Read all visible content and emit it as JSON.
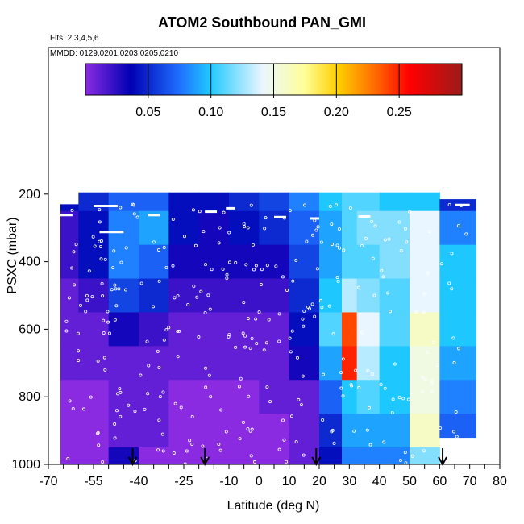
{
  "chart_data": {
    "type": "heatmap",
    "title": "ATOM2 Southbound PAN_GMI",
    "subtitle1": "Flts: 2,3,4,5,6",
    "subtitle2": "MMDD: 0129,0201,0203,0205,0210",
    "xlabel": "Latitude (deg N)",
    "ylabel": "PSXC (mbar)",
    "xlim": [
      -70,
      80
    ],
    "ylim": [
      1000,
      0
    ],
    "xticks": [
      -70,
      -55,
      -40,
      -25,
      -10,
      0,
      10,
      20,
      30,
      40,
      50,
      60,
      70,
      80
    ],
    "yticks": [
      200,
      400,
      600,
      800,
      1000
    ],
    "colorbar": {
      "range": [
        0,
        0.3
      ],
      "ticks": [
        0.05,
        0.1,
        0.15,
        0.2,
        0.25
      ],
      "tick_labels": [
        "0.05",
        "0.10",
        "0.15",
        "0.20",
        "0.25"
      ]
    },
    "latitude_bins": [
      -65,
      -55,
      -45,
      -35,
      -25,
      -15,
      -5,
      5,
      15,
      25,
      30,
      35,
      45,
      55,
      65
    ],
    "pressure_levels": [
      200,
      300,
      400,
      500,
      600,
      700,
      800,
      900,
      1000
    ],
    "values": [
      [
        0.04,
        0.05,
        0.07,
        0.07,
        0.04,
        0.04,
        0.05,
        0.06,
        0.08,
        0.1,
        0.11,
        0.11,
        0.1,
        0.1,
        0.05
      ],
      [
        0.02,
        0.04,
        0.08,
        0.09,
        0.04,
        0.03,
        0.04,
        0.05,
        0.07,
        0.09,
        0.11,
        0.12,
        0.12,
        0.14,
        0.08
      ],
      [
        0.02,
        0.04,
        0.08,
        0.07,
        0.03,
        0.03,
        0.03,
        0.03,
        0.06,
        0.09,
        0.11,
        0.11,
        0.12,
        0.14,
        0.1
      ],
      [
        0.01,
        0.02,
        0.06,
        0.05,
        0.02,
        0.02,
        0.02,
        0.02,
        0.05,
        0.1,
        0.13,
        0.12,
        0.11,
        0.14,
        0.1
      ],
      [
        0.01,
        0.01,
        0.03,
        0.02,
        0.01,
        0.01,
        0.01,
        0.01,
        0.04,
        0.11,
        0.24,
        0.14,
        0.11,
        0.16,
        0.1
      ],
      [
        0.01,
        0.01,
        0.01,
        0.01,
        0.01,
        0.01,
        0.01,
        0.01,
        0.03,
        0.09,
        0.25,
        0.13,
        0.1,
        0.15,
        0.09
      ],
      [
        0.0,
        0.0,
        0.01,
        0.01,
        0.0,
        0.0,
        0.0,
        0.01,
        0.01,
        0.07,
        0.1,
        0.11,
        0.1,
        0.15,
        0.08
      ],
      [
        0.0,
        0.0,
        0.01,
        0.01,
        0.0,
        0.0,
        0.0,
        0.0,
        0.01,
        0.05,
        0.09,
        0.09,
        0.09,
        0.16,
        0.07
      ],
      [
        0.0,
        0.0,
        0.03,
        0.0,
        0.0,
        0.0,
        0.0,
        0.0,
        0.01,
        0.04,
        0.08,
        0.08,
        0.08,
        0.12,
        0.06
      ]
    ],
    "arrows_lat": [
      -42,
      -18,
      19,
      61
    ],
    "grid": false,
    "legend": "top"
  }
}
